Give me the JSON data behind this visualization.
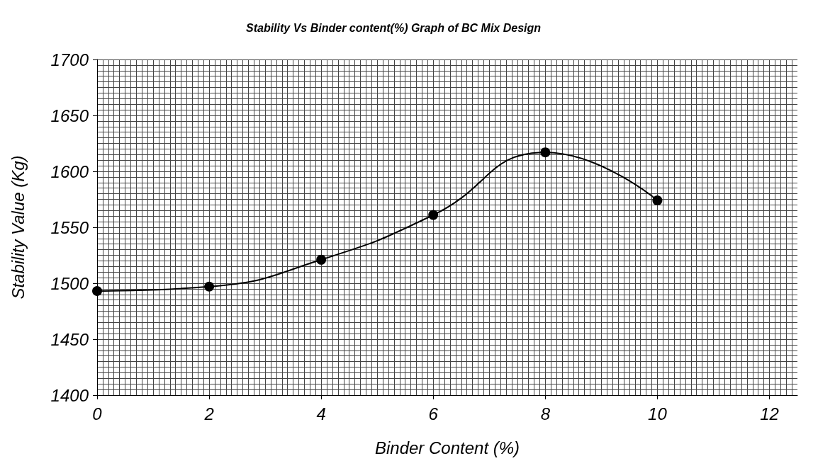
{
  "chart_data": {
    "type": "line",
    "title": "Stability Vs Binder content(%) Graph of BC Mix Design",
    "xlabel": "Binder Content (%)",
    "ylabel": "Stability Value (Kg)",
    "x": [
      0,
      2,
      4,
      6,
      8,
      10
    ],
    "series": [
      {
        "color": "#000000",
        "values": [
          1493,
          1497,
          1521,
          1561,
          1617,
          1574
        ]
      }
    ],
    "xlim": [
      0,
      12.5
    ],
    "xticks": [
      0,
      2,
      4,
      6,
      8,
      10,
      12
    ],
    "ylim": [
      1400,
      1700
    ],
    "yticks": [
      1400,
      1450,
      1500,
      1550,
      1600,
      1650,
      1700
    ],
    "grid": true,
    "marker": "circle",
    "line_style": "solid"
  }
}
